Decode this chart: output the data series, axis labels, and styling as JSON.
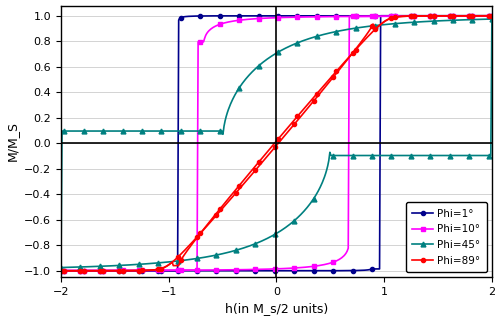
{
  "title": "",
  "xlabel": "h(in M_s/2 units)",
  "ylabel": "M/M_S",
  "xlim": [
    -2,
    2
  ],
  "ylim": [
    -1.05,
    1.08
  ],
  "xticks": [
    -2,
    -1,
    0,
    1,
    2
  ],
  "yticks": [
    -1,
    -0.8,
    -0.6,
    -0.4,
    -0.2,
    0,
    0.2,
    0.4,
    0.6,
    0.8,
    1
  ],
  "phi_degrees": [
    1,
    10,
    45,
    89
  ],
  "colors": [
    "#00008B",
    "#FF00FF",
    "#008080",
    "#FF0000"
  ],
  "markers": [
    "o",
    "s",
    "^",
    "o"
  ],
  "marker_sizes": [
    3,
    3,
    3.5,
    3
  ],
  "labels": [
    "Phi=1°",
    "Phi=10°",
    "Phi=45°",
    "Phi=89°"
  ],
  "n_points": 400
}
